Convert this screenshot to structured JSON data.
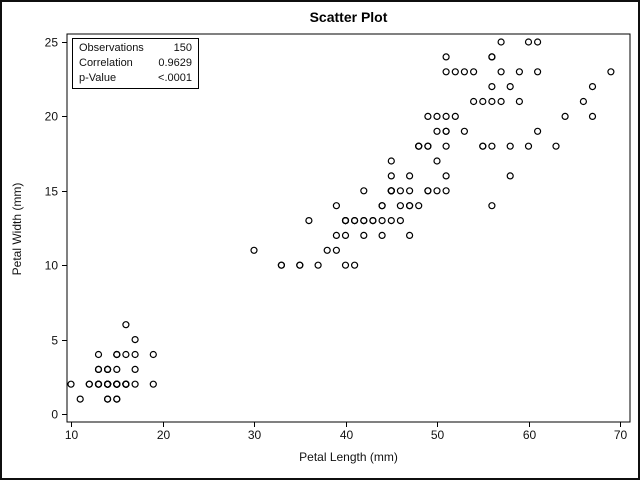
{
  "colors": {
    "background": "#ffffff",
    "frame": "#000000",
    "marker": "#000000",
    "text": "#111111"
  },
  "inset": {
    "rows": [
      {
        "label": "Observations",
        "value": "150"
      },
      {
        "label": "Correlation",
        "value": "0.9629"
      },
      {
        "label": "p-Value",
        "value": "<.0001"
      }
    ]
  },
  "chart_data": {
    "type": "scatter",
    "title": "Scatter Plot",
    "xlabel": "Petal Length (mm)",
    "ylabel": "Petal Width (mm)",
    "xlim": [
      10,
      70
    ],
    "ylim": [
      0,
      25
    ],
    "xticks": [
      10,
      20,
      30,
      40,
      50,
      60,
      70
    ],
    "yticks": [
      0,
      5,
      10,
      15,
      20,
      25
    ],
    "grid": false,
    "legend": "none",
    "marker": "open-circle",
    "points": [
      [
        14,
        2
      ],
      [
        14,
        2
      ],
      [
        13,
        2
      ],
      [
        15,
        2
      ],
      [
        14,
        2
      ],
      [
        17,
        4
      ],
      [
        14,
        3
      ],
      [
        15,
        2
      ],
      [
        14,
        2
      ],
      [
        15,
        1
      ],
      [
        15,
        2
      ],
      [
        16,
        2
      ],
      [
        14,
        1
      ],
      [
        11,
        1
      ],
      [
        12,
        2
      ],
      [
        15,
        4
      ],
      [
        13,
        4
      ],
      [
        14,
        3
      ],
      [
        17,
        3
      ],
      [
        15,
        3
      ],
      [
        17,
        2
      ],
      [
        15,
        4
      ],
      [
        10,
        2
      ],
      [
        17,
        5
      ],
      [
        19,
        2
      ],
      [
        16,
        2
      ],
      [
        16,
        4
      ],
      [
        15,
        2
      ],
      [
        14,
        2
      ],
      [
        16,
        2
      ],
      [
        16,
        2
      ],
      [
        15,
        4
      ],
      [
        15,
        1
      ],
      [
        14,
        2
      ],
      [
        15,
        2
      ],
      [
        12,
        2
      ],
      [
        13,
        2
      ],
      [
        14,
        1
      ],
      [
        13,
        2
      ],
      [
        15,
        2
      ],
      [
        13,
        3
      ],
      [
        13,
        3
      ],
      [
        13,
        2
      ],
      [
        16,
        6
      ],
      [
        19,
        4
      ],
      [
        14,
        3
      ],
      [
        16,
        2
      ],
      [
        14,
        2
      ],
      [
        15,
        2
      ],
      [
        14,
        2
      ],
      [
        47,
        14
      ],
      [
        45,
        15
      ],
      [
        49,
        15
      ],
      [
        40,
        13
      ],
      [
        46,
        15
      ],
      [
        45,
        13
      ],
      [
        47,
        16
      ],
      [
        33,
        10
      ],
      [
        46,
        13
      ],
      [
        39,
        14
      ],
      [
        35,
        10
      ],
      [
        42,
        15
      ],
      [
        40,
        10
      ],
      [
        47,
        14
      ],
      [
        36,
        13
      ],
      [
        44,
        14
      ],
      [
        45,
        15
      ],
      [
        41,
        10
      ],
      [
        45,
        15
      ],
      [
        39,
        11
      ],
      [
        48,
        18
      ],
      [
        40,
        13
      ],
      [
        49,
        15
      ],
      [
        47,
        12
      ],
      [
        43,
        13
      ],
      [
        44,
        14
      ],
      [
        48,
        14
      ],
      [
        50,
        17
      ],
      [
        45,
        15
      ],
      [
        35,
        10
      ],
      [
        38,
        11
      ],
      [
        37,
        10
      ],
      [
        39,
        12
      ],
      [
        51,
        16
      ],
      [
        45,
        15
      ],
      [
        45,
        16
      ],
      [
        47,
        15
      ],
      [
        44,
        13
      ],
      [
        41,
        13
      ],
      [
        40,
        13
      ],
      [
        44,
        12
      ],
      [
        46,
        14
      ],
      [
        40,
        12
      ],
      [
        33,
        10
      ],
      [
        42,
        13
      ],
      [
        42,
        12
      ],
      [
        42,
        13
      ],
      [
        43,
        13
      ],
      [
        30,
        11
      ],
      [
        41,
        13
      ],
      [
        60,
        25
      ],
      [
        51,
        19
      ],
      [
        59,
        21
      ],
      [
        56,
        18
      ],
      [
        58,
        22
      ],
      [
        66,
        21
      ],
      [
        45,
        17
      ],
      [
        63,
        18
      ],
      [
        58,
        18
      ],
      [
        61,
        25
      ],
      [
        51,
        20
      ],
      [
        53,
        19
      ],
      [
        55,
        21
      ],
      [
        50,
        20
      ],
      [
        51,
        24
      ],
      [
        53,
        23
      ],
      [
        55,
        18
      ],
      [
        67,
        22
      ],
      [
        69,
        23
      ],
      [
        50,
        15
      ],
      [
        57,
        23
      ],
      [
        49,
        20
      ],
      [
        67,
        20
      ],
      [
        49,
        18
      ],
      [
        57,
        21
      ],
      [
        60,
        18
      ],
      [
        48,
        18
      ],
      [
        49,
        18
      ],
      [
        56,
        21
      ],
      [
        58,
        16
      ],
      [
        61,
        19
      ],
      [
        64,
        20
      ],
      [
        56,
        22
      ],
      [
        51,
        15
      ],
      [
        56,
        14
      ],
      [
        61,
        23
      ],
      [
        56,
        24
      ],
      [
        55,
        18
      ],
      [
        48,
        18
      ],
      [
        54,
        21
      ],
      [
        56,
        24
      ],
      [
        51,
        23
      ],
      [
        51,
        19
      ],
      [
        59,
        23
      ],
      [
        57,
        25
      ],
      [
        52,
        23
      ],
      [
        50,
        19
      ],
      [
        52,
        20
      ],
      [
        54,
        23
      ],
      [
        51,
        18
      ]
    ]
  }
}
